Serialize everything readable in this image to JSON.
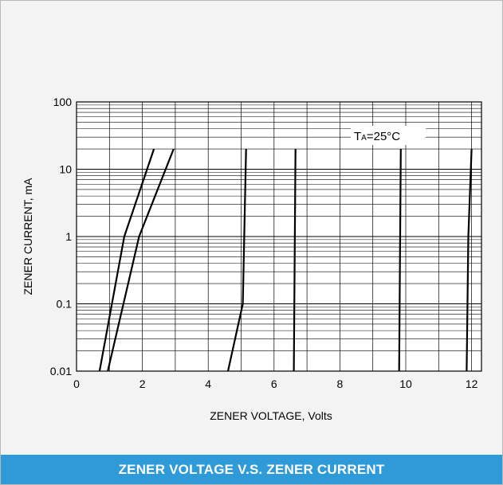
{
  "caption": "ZENER VOLTAGE V.S. ZENER CURRENT",
  "colors": {
    "caption_bg": "#2f9ad8",
    "panel_bg": "#f3f3f3",
    "plot_bg": "#ffffff",
    "line": "#000000"
  },
  "chart_data": {
    "type": "line",
    "title": "",
    "xlabel": "ZENER VOLTAGE, Volts",
    "ylabel": "ZENER CURRENT, mA",
    "x_range": [
      0,
      12.3
    ],
    "y_range": [
      0.01,
      100
    ],
    "y_scale": "log",
    "x_ticks": [
      "0",
      "2",
      "4",
      "6",
      "8",
      "10",
      "12"
    ],
    "y_ticks": [
      "0.01",
      "0.1",
      "1",
      "10",
      "100"
    ],
    "grid": true,
    "annotation": {
      "main": "T",
      "sub": "A",
      "rest": "=25°C"
    },
    "series": [
      {
        "points": [
          [
            0.7,
            0.01
          ],
          [
            1.45,
            1
          ],
          [
            2.35,
            20
          ]
        ]
      },
      {
        "points": [
          [
            0.95,
            0.01
          ],
          [
            1.9,
            1
          ],
          [
            2.95,
            20
          ]
        ]
      },
      {
        "points": [
          [
            4.6,
            0.01
          ],
          [
            5.05,
            0.1
          ],
          [
            5.15,
            20
          ]
        ]
      },
      {
        "points": [
          [
            6.6,
            0.01
          ],
          [
            6.65,
            20
          ]
        ]
      },
      {
        "points": [
          [
            9.8,
            0.01
          ],
          [
            9.85,
            20
          ]
        ]
      },
      {
        "points": [
          [
            11.85,
            0.01
          ],
          [
            11.9,
            1
          ],
          [
            12.0,
            20
          ]
        ]
      }
    ]
  }
}
